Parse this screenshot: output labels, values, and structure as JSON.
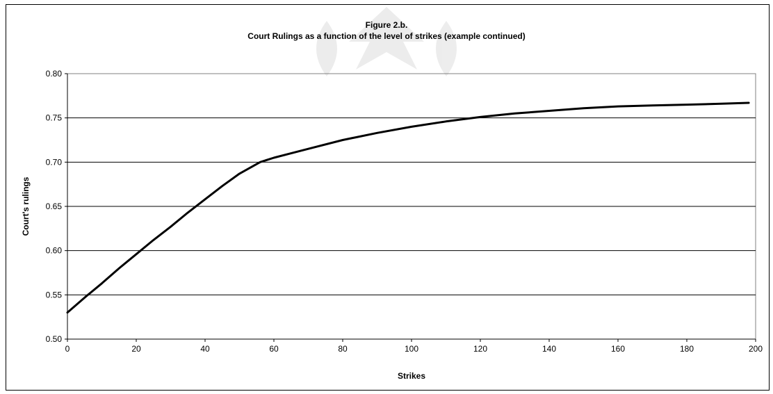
{
  "chart_data": {
    "type": "line",
    "title": "Figure 2.b.",
    "subtitle": "Court Rulings as a function of the level of strikes (example continued)",
    "xlabel": "Strikes",
    "ylabel": "Court's rulings",
    "xlim": [
      0,
      200
    ],
    "ylim": [
      0.5,
      0.8
    ],
    "x_ticks": [
      "0",
      "20",
      "40",
      "60",
      "80",
      "100",
      "120",
      "140",
      "160",
      "180",
      "200"
    ],
    "y_ticks": [
      "0.50",
      "0.55",
      "0.60",
      "0.65",
      "0.70",
      "0.75",
      "0.80"
    ],
    "grid": "horizontal",
    "legend": "none",
    "series": [
      {
        "color": "#000000",
        "x": [
          0,
          5,
          10,
          15,
          20,
          25,
          30,
          35,
          40,
          45,
          50,
          56,
          60,
          65,
          70,
          80,
          90,
          100,
          110,
          120,
          130,
          140,
          150,
          160,
          170,
          180,
          190,
          198
        ],
        "y": [
          0.53,
          0.547,
          0.563,
          0.58,
          0.596,
          0.612,
          0.627,
          0.643,
          0.658,
          0.673,
          0.687,
          0.7,
          0.705,
          0.71,
          0.715,
          0.725,
          0.733,
          0.74,
          0.746,
          0.751,
          0.755,
          0.758,
          0.761,
          0.763,
          0.764,
          0.765,
          0.766,
          0.767
        ]
      }
    ]
  },
  "watermark": "faint crest watermark"
}
